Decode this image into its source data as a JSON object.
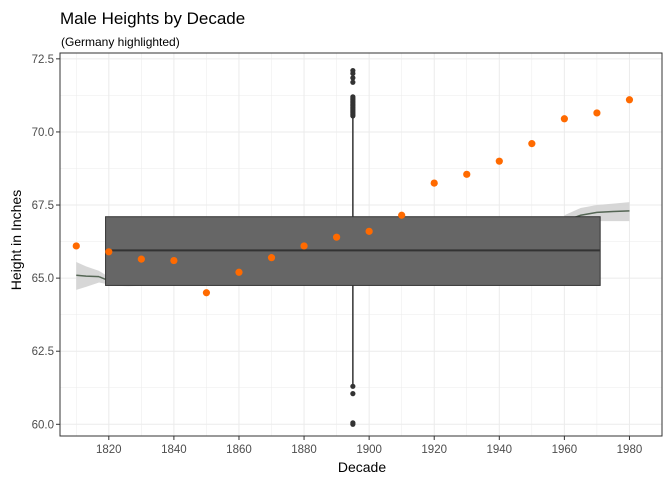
{
  "chart_data": {
    "type": "scatter",
    "title": "Male Heights by Decade",
    "subtitle": "(Germany highlighted)",
    "xlabel": "Decade",
    "ylabel": "Height in Inches",
    "xlim": [
      1805,
      1990
    ],
    "ylim": [
      59.6,
      72.7
    ],
    "x_ticks": [
      1820,
      1840,
      1860,
      1880,
      1900,
      1920,
      1940,
      1960,
      1980
    ],
    "y_ticks": [
      60.0,
      62.5,
      65.0,
      67.5,
      70.0,
      72.5
    ],
    "x_tick_labels": [
      "1820",
      "1840",
      "1860",
      "1880",
      "1900",
      "1920",
      "1940",
      "1960",
      "1980"
    ],
    "y_tick_labels": [
      "60.0",
      "62.5",
      "65.0",
      "67.5",
      "70.0",
      "72.5"
    ],
    "grid": true,
    "colors": {
      "highlight": "#ff6a00",
      "box_fill": "#666666",
      "box_line": "#333333",
      "smooth_line": "#556655",
      "smooth_band": "#d3d3d3",
      "outlier": "#333333",
      "grid": "#ebebeb",
      "panel_border": "#333333"
    },
    "boxplot": {
      "x_center": 1895,
      "x_range": [
        1819,
        1971
      ],
      "q1": 64.75,
      "median": 65.95,
      "q3": 67.1,
      "whisker_low": 61.35,
      "whisker_high": 70.5,
      "outliers": [
        60.0,
        60.05,
        61.05,
        61.3,
        70.55,
        70.6,
        70.65,
        70.7,
        70.75,
        70.8,
        70.85,
        70.9,
        70.95,
        71.0,
        71.05,
        71.1,
        71.15,
        71.2,
        71.7,
        71.85,
        72.0,
        72.1
      ]
    },
    "smooth": {
      "segments": [
        {
          "x": [
            1810,
            1813,
            1817
          ],
          "y": [
            65.1,
            65.07,
            65.05
          ],
          "ymin": [
            64.6,
            64.7,
            64.85
          ],
          "ymax": [
            65.55,
            65.4,
            65.25
          ]
        },
        {
          "x": [
            1817,
            1822,
            1826,
            1830
          ],
          "y": [
            65.05,
            64.82,
            64.78,
            64.8
          ],
          "ymin": [
            64.85,
            64.74,
            64.72,
            64.74
          ],
          "ymax": [
            65.25,
            64.9,
            64.84,
            64.86
          ]
        },
        {
          "x": [
            1960,
            1965,
            1970,
            1975,
            1980
          ],
          "y": [
            66.95,
            67.15,
            67.25,
            67.28,
            67.3
          ],
          "ymin": [
            66.75,
            66.85,
            66.95,
            66.95,
            66.95
          ],
          "ymax": [
            67.15,
            67.4,
            67.5,
            67.55,
            67.6
          ]
        }
      ]
    },
    "series": [
      {
        "x": [
          1810,
          1820,
          1830,
          1840,
          1850,
          1860,
          1870,
          1880,
          1890,
          1900,
          1910,
          1920,
          1930,
          1940,
          1950,
          1960,
          1970,
          1980
        ],
        "values": [
          66.1,
          65.9,
          65.65,
          65.6,
          64.5,
          65.2,
          65.7,
          66.1,
          66.4,
          66.6,
          67.15,
          68.25,
          68.55,
          69.0,
          69.6,
          70.45,
          70.65,
          71.1
        ]
      }
    ]
  }
}
